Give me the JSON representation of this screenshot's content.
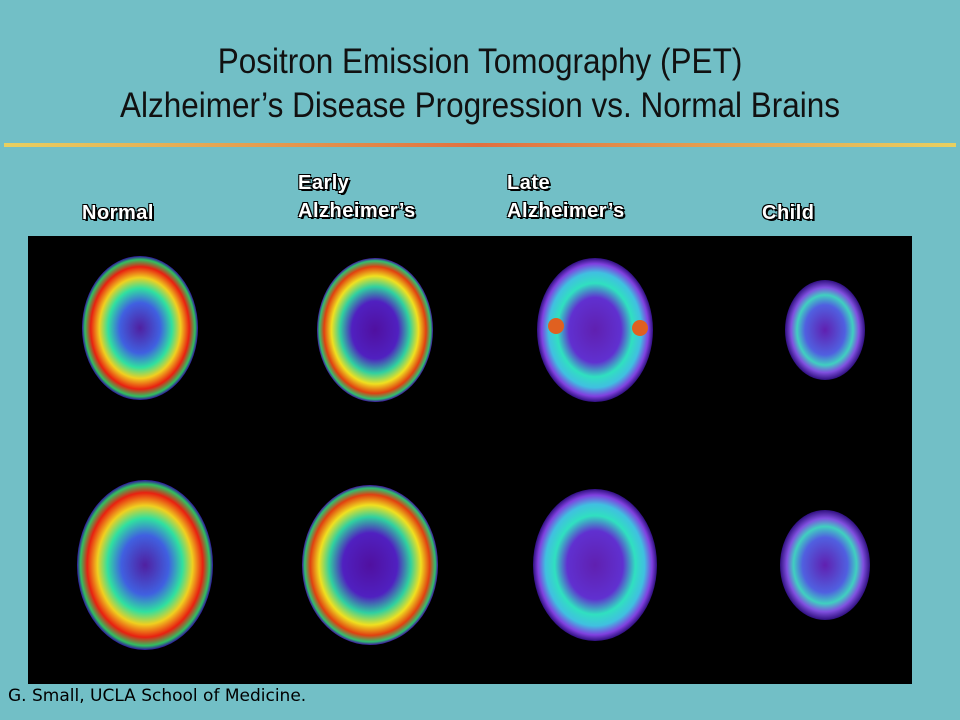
{
  "header": {
    "title_lines": [
      "Positron Emission Tomography (PET)",
      "Alzheimer’s Disease Progression vs. Normal Brains"
    ]
  },
  "columns": [
    {
      "lines": [
        "Normal"
      ]
    },
    {
      "lines": [
        "Early",
        "Alzheimer’s"
      ]
    },
    {
      "lines": [
        "Late",
        "Alzheimer’s"
      ]
    },
    {
      "lines": [
        "Child"
      ]
    }
  ],
  "credit": "G. Small, UCLA School of Medicine."
}
